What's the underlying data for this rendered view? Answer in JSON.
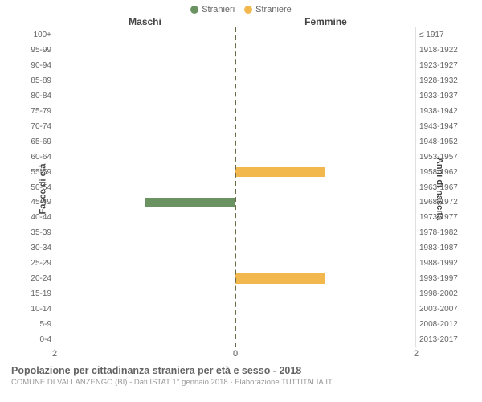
{
  "legend": {
    "male": {
      "label": "Stranieri",
      "color": "#6b9362"
    },
    "female": {
      "label": "Straniere",
      "color": "#f2b84e"
    }
  },
  "headers": {
    "left": "Maschi",
    "right": "Femmine"
  },
  "axis_titles": {
    "left": "Fasce di età",
    "right": "Anni di nascita"
  },
  "chart": {
    "type": "population-pyramid",
    "xmax": 2,
    "x_ticks_left": [
      "2",
      "0"
    ],
    "x_ticks_right": [
      "0",
      "2"
    ],
    "background_color": "#ffffff",
    "centerline_color": "#6b6b47",
    "rows": [
      {
        "age": "100+",
        "birth": "≤ 1917",
        "m": 0,
        "f": 0
      },
      {
        "age": "95-99",
        "birth": "1918-1922",
        "m": 0,
        "f": 0
      },
      {
        "age": "90-94",
        "birth": "1923-1927",
        "m": 0,
        "f": 0
      },
      {
        "age": "85-89",
        "birth": "1928-1932",
        "m": 0,
        "f": 0
      },
      {
        "age": "80-84",
        "birth": "1933-1937",
        "m": 0,
        "f": 0
      },
      {
        "age": "75-79",
        "birth": "1938-1942",
        "m": 0,
        "f": 0
      },
      {
        "age": "70-74",
        "birth": "1943-1947",
        "m": 0,
        "f": 0
      },
      {
        "age": "65-69",
        "birth": "1948-1952",
        "m": 0,
        "f": 0
      },
      {
        "age": "60-64",
        "birth": "1953-1957",
        "m": 0,
        "f": 0
      },
      {
        "age": "55-59",
        "birth": "1958-1962",
        "m": 0,
        "f": 1
      },
      {
        "age": "50-54",
        "birth": "1963-1967",
        "m": 0,
        "f": 0
      },
      {
        "age": "45-49",
        "birth": "1968-1972",
        "m": 1,
        "f": 0
      },
      {
        "age": "40-44",
        "birth": "1973-1977",
        "m": 0,
        "f": 0
      },
      {
        "age": "35-39",
        "birth": "1978-1982",
        "m": 0,
        "f": 0
      },
      {
        "age": "30-34",
        "birth": "1983-1987",
        "m": 0,
        "f": 0
      },
      {
        "age": "25-29",
        "birth": "1988-1992",
        "m": 0,
        "f": 0
      },
      {
        "age": "20-24",
        "birth": "1993-1997",
        "m": 0,
        "f": 1
      },
      {
        "age": "15-19",
        "birth": "1998-2002",
        "m": 0,
        "f": 0
      },
      {
        "age": "10-14",
        "birth": "2003-2007",
        "m": 0,
        "f": 0
      },
      {
        "age": "5-9",
        "birth": "2008-2012",
        "m": 0,
        "f": 0
      },
      {
        "age": "0-4",
        "birth": "2013-2017",
        "m": 0,
        "f": 0
      }
    ]
  },
  "footer": {
    "title": "Popolazione per cittadinanza straniera per età e sesso - 2018",
    "subtitle": "COMUNE DI VALLANZENGO (BI) - Dati ISTAT 1° gennaio 2018 - Elaborazione TUTTITALIA.IT"
  }
}
